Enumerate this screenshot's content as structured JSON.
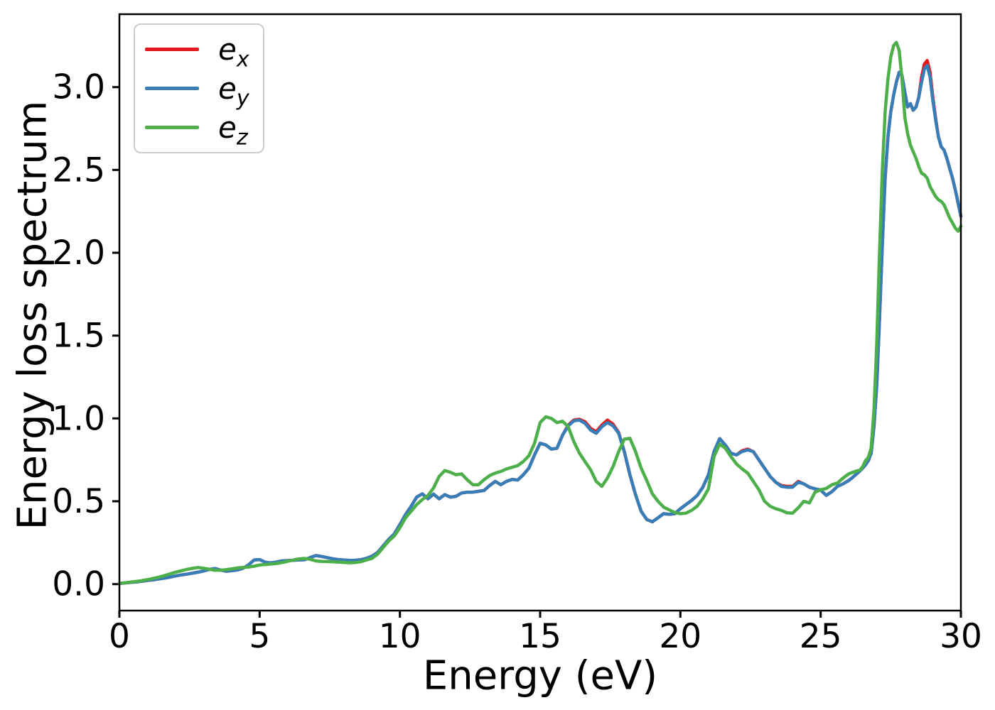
{
  "figure": {
    "xlabel": "Energy (eV)",
    "ylabel": "Energy loss spectrum"
  },
  "chart_data": {
    "type": "line",
    "title": "",
    "xlabel": "Energy (eV)",
    "ylabel": "Energy loss spectrum",
    "xlim": [
      0,
      30
    ],
    "ylim": [
      -0.16,
      3.44
    ],
    "xticks": [
      0,
      5,
      10,
      15,
      20,
      25,
      30
    ],
    "xtick_labels": [
      "0",
      "5",
      "10",
      "15",
      "20",
      "25",
      "30"
    ],
    "yticks": [
      0.0,
      0.5,
      1.0,
      1.5,
      2.0,
      2.5,
      3.0
    ],
    "ytick_labels": [
      "0.0",
      "0.5",
      "1.0",
      "1.5",
      "2.0",
      "2.5",
      "3.0"
    ],
    "grid": false,
    "legend_position": "upper-left",
    "axis_color": "#000000",
    "x": [
      0.0,
      0.2,
      0.4,
      0.6,
      0.8,
      1.0,
      1.2,
      1.4,
      1.6,
      1.8,
      2.0,
      2.2,
      2.4,
      2.6,
      2.8,
      3.0,
      3.2,
      3.4,
      3.6,
      3.8,
      4.0,
      4.2,
      4.4,
      4.6,
      4.8,
      5.0,
      5.2,
      5.4,
      5.6,
      5.8,
      6.0,
      6.2,
      6.4,
      6.6,
      6.8,
      7.0,
      7.2,
      7.4,
      7.6,
      7.8,
      8.0,
      8.2,
      8.4,
      8.6,
      8.8,
      9.0,
      9.2,
      9.4,
      9.6,
      9.8,
      10.0,
      10.2,
      10.4,
      10.6,
      10.8,
      11.0,
      11.2,
      11.4,
      11.6,
      11.8,
      12.0,
      12.2,
      12.4,
      12.6,
      12.8,
      13.0,
      13.2,
      13.4,
      13.6,
      13.8,
      14.0,
      14.2,
      14.4,
      14.6,
      14.8,
      15.0,
      15.2,
      15.4,
      15.6,
      15.8,
      16.0,
      16.2,
      16.4,
      16.6,
      16.8,
      17.0,
      17.2,
      17.4,
      17.6,
      17.8,
      18.0,
      18.2,
      18.4,
      18.6,
      18.8,
      19.0,
      19.2,
      19.4,
      19.6,
      19.8,
      20.0,
      20.2,
      20.4,
      20.6,
      20.8,
      21.0,
      21.2,
      21.4,
      21.6,
      21.8,
      22.0,
      22.2,
      22.4,
      22.6,
      22.8,
      23.0,
      23.2,
      23.4,
      23.6,
      23.8,
      24.0,
      24.2,
      24.4,
      24.6,
      24.8,
      25.0,
      25.2,
      25.4,
      25.6,
      25.8,
      26.0,
      26.1,
      26.2,
      26.3,
      26.4,
      26.5,
      26.6,
      26.7,
      26.8,
      26.9,
      27.0,
      27.1,
      27.2,
      27.3,
      27.4,
      27.5,
      27.6,
      27.7,
      27.8,
      27.9,
      28.0,
      28.1,
      28.2,
      28.3,
      28.4,
      28.5,
      28.6,
      28.7,
      28.8,
      28.9,
      29.0,
      29.1,
      29.2,
      29.3,
      29.4,
      29.5,
      29.6,
      29.7,
      29.8,
      29.9,
      30.0
    ],
    "series": [
      {
        "name": "e_x",
        "label_base": "e",
        "label_sub": "x",
        "color": "#e41a1c",
        "values": [
          0.004,
          0.007,
          0.01,
          0.013,
          0.017,
          0.022,
          0.026,
          0.031,
          0.036,
          0.042,
          0.049,
          0.055,
          0.06,
          0.066,
          0.072,
          0.079,
          0.088,
          0.094,
          0.085,
          0.078,
          0.081,
          0.085,
          0.095,
          0.115,
          0.145,
          0.148,
          0.132,
          0.128,
          0.133,
          0.14,
          0.142,
          0.144,
          0.146,
          0.147,
          0.16,
          0.172,
          0.167,
          0.16,
          0.153,
          0.148,
          0.145,
          0.143,
          0.144,
          0.147,
          0.155,
          0.168,
          0.19,
          0.23,
          0.27,
          0.303,
          0.36,
          0.42,
          0.47,
          0.525,
          0.545,
          0.515,
          0.543,
          0.515,
          0.54,
          0.525,
          0.53,
          0.55,
          0.555,
          0.555,
          0.56,
          0.565,
          0.595,
          0.62,
          0.6,
          0.62,
          0.632,
          0.628,
          0.66,
          0.7,
          0.78,
          0.85,
          0.84,
          0.815,
          0.82,
          0.9,
          0.96,
          0.99,
          0.995,
          0.98,
          0.94,
          0.92,
          0.96,
          0.99,
          0.965,
          0.915,
          0.8,
          0.66,
          0.54,
          0.44,
          0.39,
          0.376,
          0.4,
          0.425,
          0.421,
          0.425,
          0.455,
          0.48,
          0.505,
          0.535,
          0.585,
          0.66,
          0.8,
          0.878,
          0.84,
          0.79,
          0.78,
          0.805,
          0.815,
          0.8,
          0.75,
          0.7,
          0.65,
          0.615,
          0.595,
          0.59,
          0.59,
          0.62,
          0.605,
          0.585,
          0.575,
          0.568,
          0.535,
          0.558,
          0.59,
          0.605,
          0.625,
          0.638,
          0.653,
          0.668,
          0.683,
          0.7,
          0.72,
          0.745,
          0.79,
          0.95,
          1.2,
          1.6,
          2.05,
          2.45,
          2.7,
          2.85,
          2.95,
          3.03,
          3.09,
          3.07,
          2.97,
          2.88,
          2.9,
          2.86,
          2.88,
          2.94,
          3.06,
          3.14,
          3.16,
          3.09,
          2.94,
          2.81,
          2.7,
          2.64,
          2.62,
          2.57,
          2.51,
          2.45,
          2.38,
          2.3,
          2.22
        ]
      },
      {
        "name": "e_y",
        "label_base": "e",
        "label_sub": "y",
        "color": "#377eb8",
        "values": [
          0.004,
          0.007,
          0.01,
          0.013,
          0.017,
          0.022,
          0.026,
          0.031,
          0.036,
          0.042,
          0.049,
          0.055,
          0.06,
          0.066,
          0.072,
          0.079,
          0.088,
          0.094,
          0.085,
          0.078,
          0.081,
          0.085,
          0.095,
          0.115,
          0.145,
          0.148,
          0.132,
          0.128,
          0.133,
          0.14,
          0.142,
          0.144,
          0.146,
          0.147,
          0.16,
          0.172,
          0.167,
          0.16,
          0.153,
          0.148,
          0.145,
          0.143,
          0.144,
          0.147,
          0.155,
          0.168,
          0.19,
          0.23,
          0.27,
          0.303,
          0.36,
          0.42,
          0.47,
          0.525,
          0.545,
          0.515,
          0.543,
          0.515,
          0.54,
          0.525,
          0.53,
          0.55,
          0.555,
          0.555,
          0.56,
          0.565,
          0.595,
          0.62,
          0.6,
          0.62,
          0.632,
          0.628,
          0.66,
          0.7,
          0.78,
          0.85,
          0.84,
          0.815,
          0.82,
          0.9,
          0.955,
          0.985,
          0.99,
          0.97,
          0.93,
          0.91,
          0.95,
          0.975,
          0.955,
          0.91,
          0.8,
          0.66,
          0.54,
          0.44,
          0.39,
          0.376,
          0.4,
          0.425,
          0.421,
          0.425,
          0.455,
          0.48,
          0.505,
          0.535,
          0.585,
          0.66,
          0.8,
          0.878,
          0.84,
          0.79,
          0.78,
          0.8,
          0.81,
          0.8,
          0.75,
          0.7,
          0.65,
          0.615,
          0.59,
          0.585,
          0.585,
          0.615,
          0.605,
          0.585,
          0.575,
          0.568,
          0.535,
          0.558,
          0.59,
          0.605,
          0.625,
          0.638,
          0.653,
          0.668,
          0.683,
          0.7,
          0.72,
          0.745,
          0.79,
          0.95,
          1.2,
          1.6,
          2.05,
          2.45,
          2.7,
          2.85,
          2.95,
          3.03,
          3.09,
          3.07,
          2.97,
          2.88,
          2.9,
          2.86,
          2.88,
          2.94,
          3.03,
          3.11,
          3.13,
          3.06,
          2.92,
          2.8,
          2.7,
          2.64,
          2.62,
          2.57,
          2.51,
          2.45,
          2.38,
          2.3,
          2.22
        ]
      },
      {
        "name": "e_z",
        "label_base": "e",
        "label_sub": "z",
        "color": "#4daf4a",
        "values": [
          0.005,
          0.008,
          0.012,
          0.016,
          0.021,
          0.027,
          0.034,
          0.042,
          0.051,
          0.061,
          0.072,
          0.08,
          0.088,
          0.095,
          0.1,
          0.096,
          0.09,
          0.084,
          0.084,
          0.087,
          0.092,
          0.097,
          0.1,
          0.103,
          0.108,
          0.115,
          0.118,
          0.121,
          0.124,
          0.13,
          0.138,
          0.145,
          0.152,
          0.155,
          0.15,
          0.14,
          0.137,
          0.136,
          0.135,
          0.133,
          0.131,
          0.129,
          0.13,
          0.135,
          0.145,
          0.155,
          0.18,
          0.22,
          0.26,
          0.29,
          0.34,
          0.4,
          0.44,
          0.48,
          0.51,
          0.535,
          0.58,
          0.65,
          0.685,
          0.675,
          0.66,
          0.665,
          0.63,
          0.6,
          0.6,
          0.63,
          0.655,
          0.67,
          0.68,
          0.695,
          0.705,
          0.715,
          0.74,
          0.775,
          0.85,
          0.975,
          1.01,
          1.0,
          0.975,
          0.983,
          0.95,
          0.86,
          0.79,
          0.74,
          0.69,
          0.62,
          0.59,
          0.64,
          0.71,
          0.8,
          0.875,
          0.88,
          0.8,
          0.7,
          0.625,
          0.545,
          0.5,
          0.465,
          0.448,
          0.432,
          0.425,
          0.428,
          0.445,
          0.47,
          0.515,
          0.575,
          0.77,
          0.845,
          0.82,
          0.77,
          0.725,
          0.695,
          0.67,
          0.62,
          0.57,
          0.5,
          0.47,
          0.455,
          0.445,
          0.43,
          0.428,
          0.46,
          0.5,
          0.49,
          0.555,
          0.57,
          0.577,
          0.6,
          0.61,
          0.64,
          0.665,
          0.672,
          0.678,
          0.684,
          0.688,
          0.71,
          0.745,
          0.765,
          0.82,
          1.05,
          1.45,
          2.0,
          2.5,
          2.85,
          3.05,
          3.18,
          3.25,
          3.27,
          3.22,
          3.05,
          2.82,
          2.72,
          2.65,
          2.61,
          2.57,
          2.52,
          2.48,
          2.47,
          2.45,
          2.4,
          2.37,
          2.34,
          2.32,
          2.31,
          2.29,
          2.25,
          2.21,
          2.18,
          2.15,
          2.13,
          2.16
        ]
      }
    ]
  }
}
